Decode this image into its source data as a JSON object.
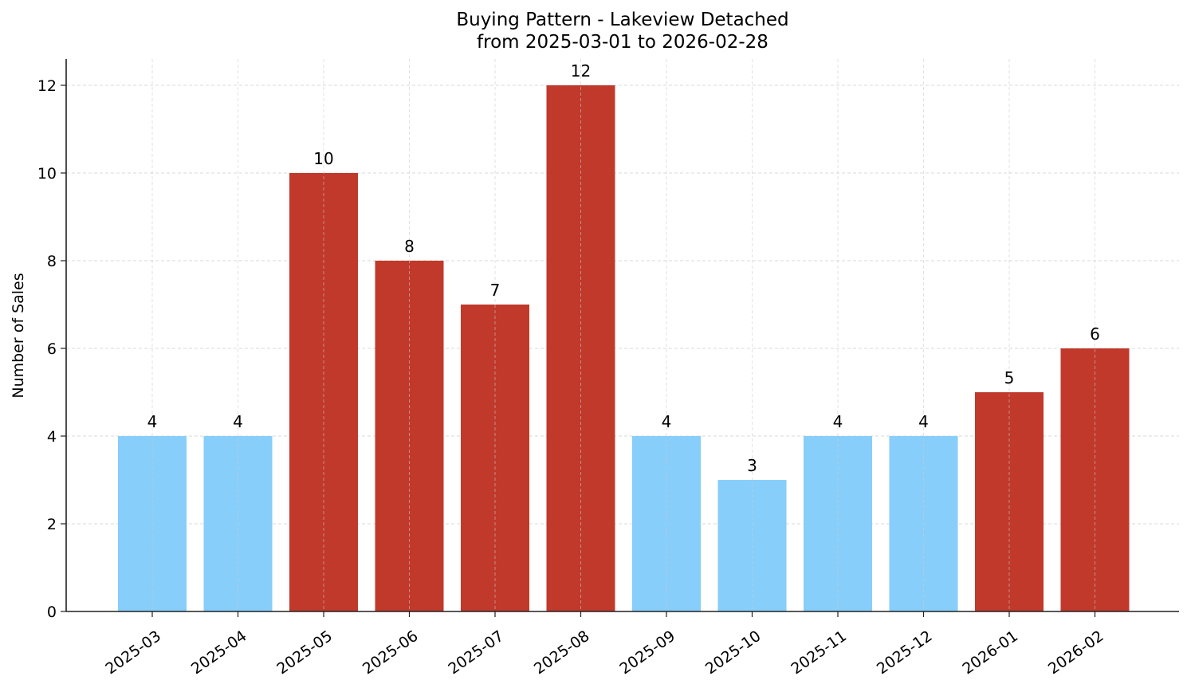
{
  "chart_data": {
    "type": "bar",
    "title": "Buying Pattern - Lakeview Detached",
    "subtitle": "from 2025-03-01 to 2026-02-28",
    "xlabel": "",
    "ylabel": "Number of Sales",
    "categories": [
      "2025-03",
      "2025-04",
      "2025-05",
      "2025-06",
      "2025-07",
      "2025-08",
      "2025-09",
      "2025-10",
      "2025-11",
      "2025-12",
      "2026-01",
      "2026-02"
    ],
    "values": [
      4,
      4,
      10,
      8,
      7,
      12,
      4,
      3,
      4,
      4,
      5,
      6
    ],
    "bar_colors": [
      "#87cefa",
      "#87cefa",
      "#c0392b",
      "#c0392b",
      "#c0392b",
      "#c0392b",
      "#87cefa",
      "#87cefa",
      "#87cefa",
      "#87cefa",
      "#c0392b",
      "#c0392b"
    ],
    "data_labels": [
      "4",
      "4",
      "10",
      "8",
      "7",
      "12",
      "4",
      "3",
      "4",
      "4",
      "5",
      "6"
    ],
    "yticks": [
      0,
      2,
      4,
      6,
      8,
      10,
      12
    ],
    "ylim": [
      0,
      12.6
    ],
    "grid": true,
    "legend": null
  }
}
